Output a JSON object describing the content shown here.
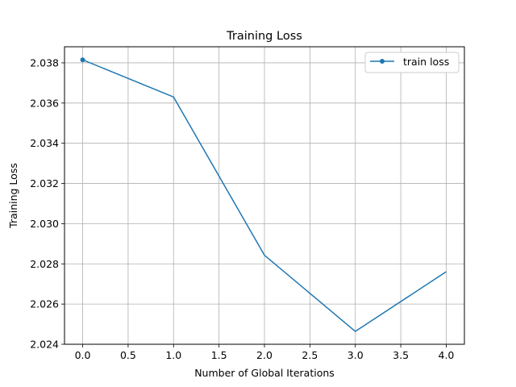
{
  "chart_data": {
    "type": "line",
    "title": "Training Loss",
    "xlabel": "Number of Global Iterations",
    "ylabel": "Training Loss",
    "xlim": [
      -0.2,
      4.2
    ],
    "ylim": [
      2.024,
      2.0388
    ],
    "xticks": [
      0.0,
      0.5,
      1.0,
      1.5,
      2.0,
      2.5,
      3.0,
      3.5,
      4.0
    ],
    "xtick_labels": [
      "0.0",
      "0.5",
      "1.0",
      "1.5",
      "2.0",
      "2.5",
      "3.0",
      "3.5",
      "4.0"
    ],
    "yticks": [
      2.024,
      2.026,
      2.028,
      2.03,
      2.032,
      2.034,
      2.036,
      2.038
    ],
    "ytick_labels": [
      "2.024",
      "2.026",
      "2.028",
      "2.030",
      "2.032",
      "2.034",
      "2.036",
      "2.038"
    ],
    "grid": true,
    "legend_position": "top-right",
    "series": [
      {
        "name": "train loss",
        "color": "#1f77b4",
        "marker": "circle",
        "x": [
          0,
          1,
          2,
          3,
          4
        ],
        "y": [
          2.03815,
          2.0363,
          2.02843,
          2.02464,
          2.02761
        ]
      }
    ]
  }
}
